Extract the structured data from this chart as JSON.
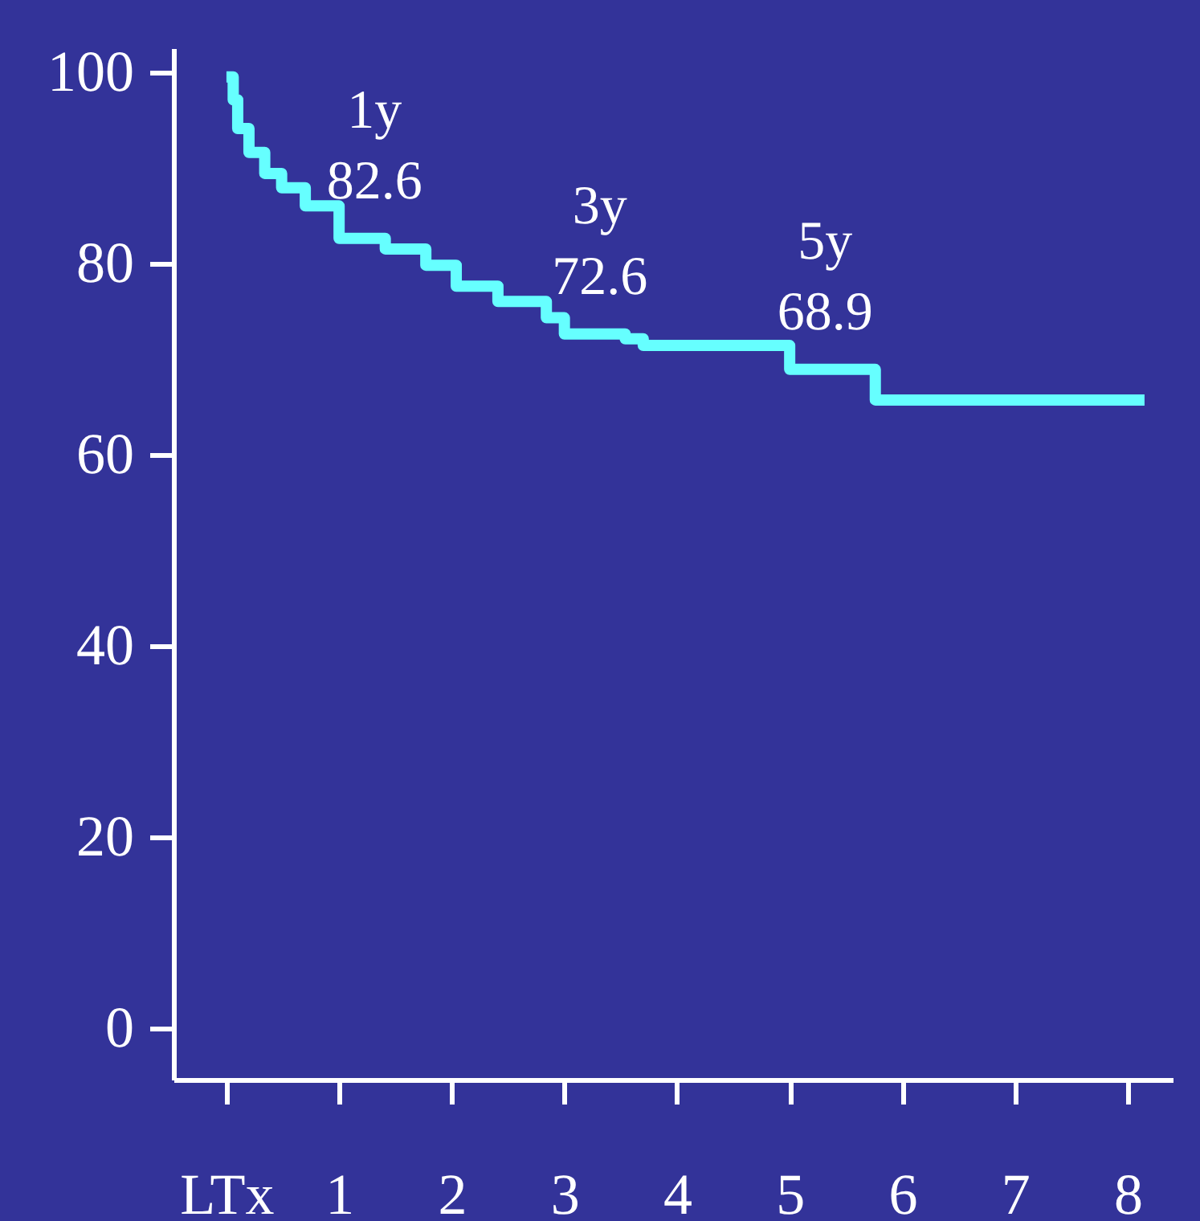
{
  "chart_data": {
    "type": "step",
    "x": [
      0,
      0.06,
      0.1,
      0.2,
      0.34,
      0.49,
      0.7,
      1,
      1.41,
      1.77,
      2.04,
      2.41,
      2.84,
      3,
      3.54,
      3.7,
      5,
      5.76,
      8.15
    ],
    "series": [
      {
        "color": "#66ffff",
        "values": [
          99.5,
          97.1,
          94.1,
          91.6,
          89.4,
          87.9,
          86,
          82.6,
          81.5,
          79.8,
          77.6,
          76,
          74.3,
          72.6,
          72.1,
          71.4,
          68.9,
          65.7,
          65.7
        ]
      }
    ],
    "xlim": [
      -0.47,
      8.4
    ],
    "ylim": [
      -5.4,
      102.5
    ],
    "xticks": [
      {
        "value": 0,
        "label": "LTx"
      },
      1,
      2,
      3,
      4,
      5,
      6,
      7,
      8
    ],
    "yticks": [
      0,
      20,
      40,
      60,
      80,
      100
    ],
    "annotations": [
      {
        "text": "1y\n82.6",
        "x": 1,
        "y": 82.6
      },
      {
        "text": "3y\n72.6",
        "x": 3,
        "y": 72.6
      },
      {
        "text": "5y\n68.9",
        "x": 5,
        "y": 68.9
      }
    ],
    "grid": false
  }
}
